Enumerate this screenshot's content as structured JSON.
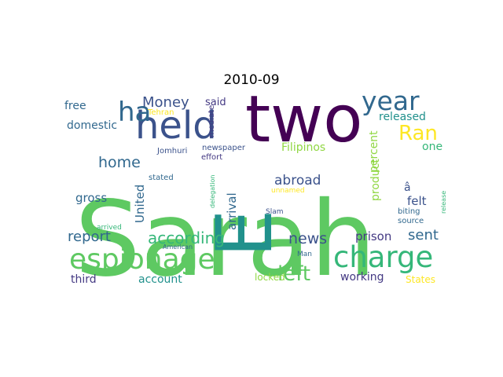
{
  "title": "2010-09",
  "words": [
    {
      "text": "Sarah",
      "color": "#5ec962"
    },
    {
      "text": "two",
      "color": "#440154"
    },
    {
      "text": "E",
      "color": "#21918c"
    },
    {
      "text": "held",
      "color": "#3b528b"
    },
    {
      "text": "espionage",
      "color": "#5ec962"
    },
    {
      "text": "charge",
      "color": "#35b779"
    },
    {
      "text": "year",
      "color": "#31688e"
    },
    {
      "text": "ha",
      "color": "#31688e"
    },
    {
      "text": "left",
      "color": "#5ec962"
    },
    {
      "text": "Ran",
      "color": "#fde725"
    },
    {
      "text": "according",
      "color": "#35b779"
    },
    {
      "text": "Money",
      "color": "#3b528b"
    },
    {
      "text": "news",
      "color": "#3b528b"
    },
    {
      "text": "report",
      "color": "#31688e"
    },
    {
      "text": "home",
      "color": "#31688e"
    },
    {
      "text": "sent",
      "color": "#31688e"
    },
    {
      "text": "abroad",
      "color": "#3b528b"
    },
    {
      "text": "Filipinos",
      "color": "#90d743"
    },
    {
      "text": "prison",
      "color": "#443983"
    },
    {
      "text": "released",
      "color": "#21918c"
    },
    {
      "text": "domestic",
      "color": "#31688e"
    },
    {
      "text": "free",
      "color": "#31688e"
    },
    {
      "text": "said",
      "color": "#443983"
    },
    {
      "text": "one",
      "color": "#35b779"
    },
    {
      "text": "gross",
      "color": "#31688e"
    },
    {
      "text": "felt",
      "color": "#3b528b"
    },
    {
      "text": "arrival",
      "color": "#31688e"
    },
    {
      "text": "working",
      "color": "#443983"
    },
    {
      "text": "third",
      "color": "#443983"
    },
    {
      "text": "account",
      "color": "#21918c"
    },
    {
      "text": "United",
      "color": "#31688e"
    },
    {
      "text": "product",
      "color": "#90d743"
    },
    {
      "text": "percent",
      "color": "#90d743"
    },
    {
      "text": "â",
      "color": "#3b528b"
    },
    {
      "text": "States",
      "color": "#fde725"
    },
    {
      "text": "locked",
      "color": "#90d743"
    },
    {
      "text": "Jomhuri",
      "color": "#3b528b"
    },
    {
      "text": "newspaper",
      "color": "#3b528b"
    },
    {
      "text": "effort",
      "color": "#443983"
    },
    {
      "text": "stated",
      "color": "#31688e"
    },
    {
      "text": "Tehran",
      "color": "#fde725"
    },
    {
      "text": "mediate",
      "color": "#443983"
    },
    {
      "text": "delegation",
      "color": "#35b779"
    },
    {
      "text": "unnamed",
      "color": "#fde725"
    },
    {
      "text": "Slam",
      "color": "#3b528b"
    },
    {
      "text": "biting",
      "color": "#31688e"
    },
    {
      "text": "source",
      "color": "#31688e"
    },
    {
      "text": "release",
      "color": "#35b779"
    },
    {
      "text": "arrived",
      "color": "#35b779"
    },
    {
      "text": "American",
      "color": "#31688e"
    },
    {
      "text": "Man",
      "color": "#31688e"
    }
  ]
}
